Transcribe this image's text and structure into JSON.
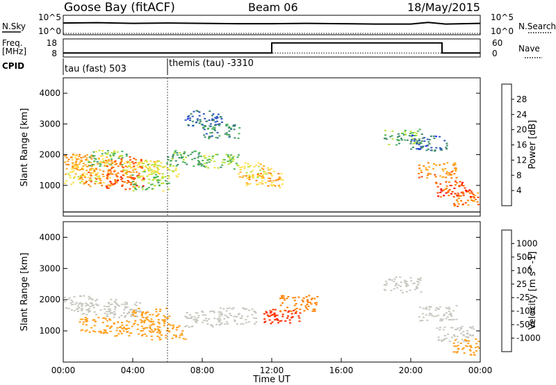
{
  "header": {
    "station": "Goose Bay (fitACF)",
    "beam": "Beam 06",
    "date": "18/May/2015"
  },
  "noise_panel": {
    "left_label": "N.Sky",
    "left_ticks": [
      "10^5",
      "10^0"
    ],
    "right_label": "N.Search",
    "right_ticks": [
      "10^5",
      "10^0"
    ]
  },
  "freq_panel": {
    "left_label_line1": "Freq.",
    "left_label_line2": "[MHz]",
    "left_ticks": [
      "18",
      "8"
    ],
    "right_label": "Nave",
    "right_ticks": [
      "60",
      "0"
    ]
  },
  "cpid_panel": {
    "label": "CPID",
    "segments": [
      "tau (fast) 503",
      "themis (tau) -3310"
    ]
  },
  "x_axis": {
    "label": "Time UT",
    "ticks": [
      "00:00",
      "04:00",
      "08:00",
      "12:00",
      "16:00",
      "20:00",
      "00:00"
    ]
  },
  "y_axis": {
    "label": "Slant Range [km]",
    "ticks": [
      "1000",
      "2000",
      "3000",
      "4000"
    ]
  },
  "power_colorbar": {
    "label": "Power [dB]",
    "ticks": [
      "4",
      "8",
      "12",
      "16",
      "20",
      "24",
      "28"
    ],
    "colors": [
      "#1a22ff",
      "#2a55b8",
      "#3f8a6e",
      "#4fb55a",
      "#b8e23a",
      "#ffe04a",
      "#ffaa22",
      "#ff7f00",
      "#ff4a00",
      "#ff0000"
    ]
  },
  "velocity_colorbar": {
    "label": "Velocity [m s^-1]",
    "ticks": [
      "1000",
      "500",
      "100",
      "25",
      "-25",
      "-100",
      "-500",
      "-1000"
    ],
    "colors": [
      "#1a1aff",
      "#2c5fb4",
      "#3e8c6e",
      "#4fb45a",
      "#c8c8c0",
      "#ffa020",
      "#ff7f00",
      "#ff3000",
      "#ff0000"
    ]
  },
  "chart_data": [
    {
      "type": "line",
      "title": "N.Sky / N.Search",
      "x": [
        0,
        2,
        4,
        6,
        8,
        10,
        12,
        14,
        16,
        18,
        20,
        21,
        22,
        23,
        24
      ],
      "series": [
        {
          "name": "N.Sky",
          "values": [
            3.1,
            3.2,
            3.0,
            3.1,
            3.0,
            2.9,
            2.9,
            3.0,
            2.9,
            2.8,
            2.8,
            3.3,
            2.8,
            2.9,
            3.0
          ]
        },
        {
          "name": "N.Search",
          "values": [
            0,
            0,
            0,
            0,
            0,
            0,
            0,
            0,
            0,
            0,
            0,
            0,
            0,
            0,
            0
          ]
        }
      ],
      "ylim": [
        0,
        5
      ]
    },
    {
      "type": "line",
      "title": "Freq. / Nave",
      "series": [
        {
          "name": "Freq.",
          "x": [
            0,
            6,
            6,
            12,
            12,
            21.8,
            21.8,
            24
          ],
          "values": [
            10,
            10,
            10,
            10,
            16,
            16,
            10,
            10
          ]
        },
        {
          "name": "Nave",
          "x": [
            0,
            24
          ],
          "values": [
            12,
            12
          ]
        }
      ],
      "ylim": [
        8,
        18
      ]
    },
    {
      "type": "heatmap",
      "title": "Power [dB]",
      "xlabel": "Time UT",
      "ylabel": "Slant Range [km]",
      "xlim": [
        0,
        24
      ],
      "ylim": [
        0,
        4500
      ],
      "colorbar": "Power [dB]",
      "clim": [
        3,
        30
      ],
      "cells": [
        {
          "x": 0.5,
          "y": 1800,
          "v": 22
        },
        {
          "x": 1.5,
          "y": 1750,
          "v": 20
        },
        {
          "x": 2.5,
          "y": 1900,
          "v": 14
        },
        {
          "x": 3.5,
          "y": 1700,
          "v": 24
        },
        {
          "x": 4.5,
          "y": 1600,
          "v": 18
        },
        {
          "x": 5.5,
          "y": 1500,
          "v": 16
        },
        {
          "x": 1.0,
          "y": 1300,
          "v": 18
        },
        {
          "x": 2.0,
          "y": 1250,
          "v": 22
        },
        {
          "x": 3.5,
          "y": 1150,
          "v": 26
        },
        {
          "x": 5.0,
          "y": 1100,
          "v": 14
        },
        {
          "x": 7.0,
          "y": 1900,
          "v": 12
        },
        {
          "x": 9.0,
          "y": 1800,
          "v": 14
        },
        {
          "x": 11.0,
          "y": 1500,
          "v": 18
        },
        {
          "x": 11.5,
          "y": 1200,
          "v": 20
        },
        {
          "x": 8.0,
          "y": 3200,
          "v": 8
        },
        {
          "x": 9.0,
          "y": 2800,
          "v": 10
        },
        {
          "x": 19.5,
          "y": 2600,
          "v": 12
        },
        {
          "x": 21.0,
          "y": 2400,
          "v": 8
        },
        {
          "x": 21.5,
          "y": 1500,
          "v": 22
        },
        {
          "x": 22.5,
          "y": 900,
          "v": 26
        },
        {
          "x": 23.5,
          "y": 600,
          "v": 24
        }
      ]
    },
    {
      "type": "heatmap",
      "title": "Velocity [m s^-1]",
      "xlabel": "Time UT",
      "ylabel": "Slant Range [km]",
      "xlim": [
        0,
        24
      ],
      "ylim": [
        0,
        4500
      ],
      "colorbar": "Velocity [m s^-1]",
      "clim": [
        -1000,
        1000
      ],
      "cells": [
        {
          "x": 0.5,
          "y": 1900,
          "v": 100
        },
        {
          "x": 2.0,
          "y": 1800,
          "v": 0
        },
        {
          "x": 3.5,
          "y": 1700,
          "v": -100
        },
        {
          "x": 5.0,
          "y": 1500,
          "v": -200
        },
        {
          "x": 2.0,
          "y": 1200,
          "v": -150
        },
        {
          "x": 4.0,
          "y": 1100,
          "v": -300
        },
        {
          "x": 6.0,
          "y": 1000,
          "v": -120
        },
        {
          "x": 8.0,
          "y": 1400,
          "v": 0
        },
        {
          "x": 10.0,
          "y": 1500,
          "v": 0
        },
        {
          "x": 12.5,
          "y": 1500,
          "v": -600
        },
        {
          "x": 13.5,
          "y": 1900,
          "v": -500
        },
        {
          "x": 19.5,
          "y": 2500,
          "v": 0
        },
        {
          "x": 21.5,
          "y": 1600,
          "v": 100
        },
        {
          "x": 22.5,
          "y": 900,
          "v": 80
        },
        {
          "x": 23.5,
          "y": 500,
          "v": -150
        }
      ]
    }
  ]
}
